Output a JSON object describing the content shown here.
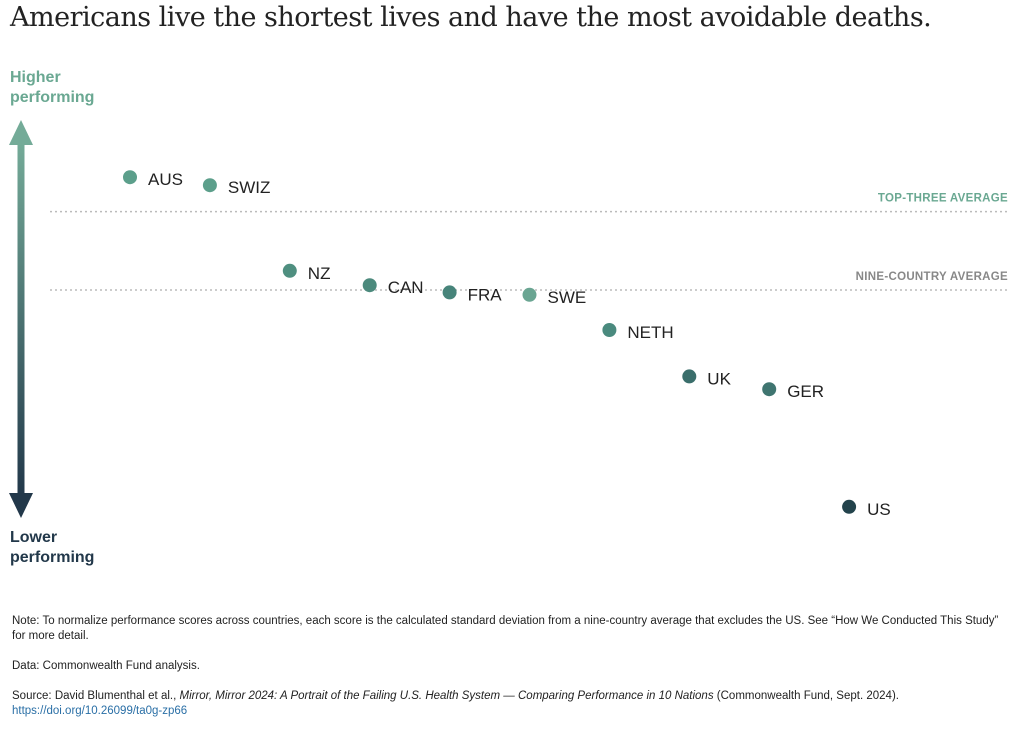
{
  "chart_data": {
    "type": "scatter",
    "title": "Americans live the shortest lives and have the most avoidable deaths.",
    "ylabel_top": "Higher performing",
    "ylabel_bottom": "Lower performing",
    "y_units": "standard deviations from nine-country average (estimated)",
    "points": [
      {
        "label": "AUS",
        "rank": 1,
        "y": 1.41,
        "color": "#5c9f8b"
      },
      {
        "label": "SWIZ",
        "rank": 2,
        "y": 1.31,
        "color": "#5c9f8b"
      },
      {
        "label": "NZ",
        "rank": 3,
        "y": 0.24,
        "color": "#4f8f80"
      },
      {
        "label": "CAN",
        "rank": 4,
        "y": 0.06,
        "color": "#4c8a7d"
      },
      {
        "label": "FRA",
        "rank": 5,
        "y": -0.03,
        "color": "#47847a"
      },
      {
        "label": "SWE",
        "rank": 6,
        "y": -0.06,
        "color": "#6aa592"
      },
      {
        "label": "NETH",
        "rank": 7,
        "y": -0.5,
        "color": "#4a8a7e"
      },
      {
        "label": "UK",
        "rank": 8,
        "y": -1.08,
        "color": "#3a6e6b"
      },
      {
        "label": "GER",
        "rank": 9,
        "y": -1.24,
        "color": "#3f7570"
      },
      {
        "label": "US",
        "rank": 10,
        "y": -2.71,
        "color": "#23434c"
      }
    ],
    "reference_lines": [
      {
        "label": "TOP-THREE AVERAGE",
        "y": 0.98,
        "color": "#6aa892"
      },
      {
        "label": "NINE-COUNTRY AVERAGE",
        "y": 0.0,
        "color": "#888888"
      }
    ],
    "ylim": [
      -3.4,
      2.2
    ]
  },
  "footer": {
    "note": "Note: To normalize performance scores across countries, each score is the calculated standard deviation from a nine-country average that excludes the US. See “How We Conducted This Study” for more detail.",
    "data": "Data: Commonwealth Fund analysis.",
    "source_prefix": "Source: David Blumenthal et al., ",
    "source_title": "Mirror, Mirror 2024: A Portrait of the Failing U.S. Health System — Comparing Performance in 10 Nations",
    "source_suffix": " (Commonwealth Fund, Sept. 2024). ",
    "source_link": "https://doi.org/10.26099/ta0g-zp66"
  }
}
